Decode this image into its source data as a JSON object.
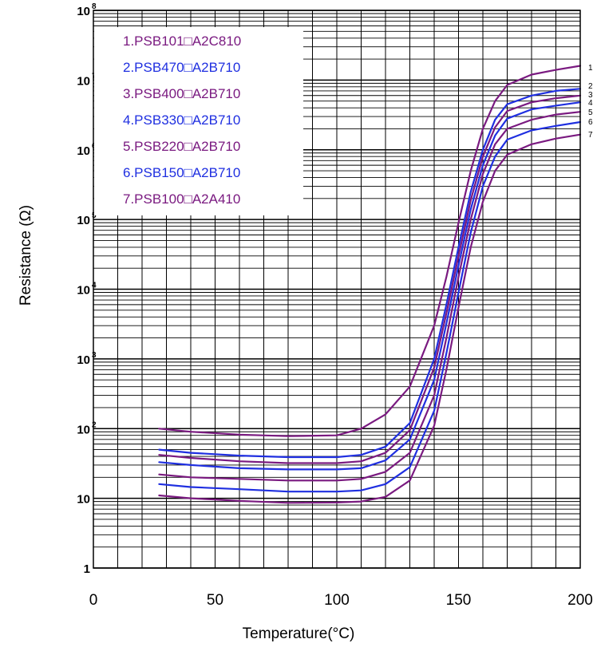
{
  "chart_data": {
    "type": "line",
    "title": "",
    "xlabel": "Temperature(°C)",
    "ylabel": "Resistance (Ω)",
    "x_scale": "linear",
    "y_scale": "log",
    "xlim": [
      0,
      200
    ],
    "ylim": [
      1,
      100000000
    ],
    "grid": true,
    "legend_position": "top-left",
    "x_ticks": [
      "0",
      "50",
      "100",
      "150",
      "200"
    ],
    "y_ticks": [
      {
        "base": "1",
        "exp": ""
      },
      {
        "base": "10",
        "exp": ""
      },
      {
        "base": "10",
        "exp": "2"
      },
      {
        "base": "10",
        "exp": "3"
      },
      {
        "base": "10",
        "exp": "4"
      },
      {
        "base": "10",
        "exp": "5"
      },
      {
        "base": "10",
        "exp": "6"
      },
      {
        "base": "10",
        "exp": "7"
      },
      {
        "base": "10",
        "exp": "8"
      }
    ],
    "series": [
      {
        "name": "1.PSB101□A2C810",
        "end_label": "1",
        "color": "#7a1a80",
        "points": [
          [
            27,
            100
          ],
          [
            40,
            90
          ],
          [
            60,
            82
          ],
          [
            80,
            78
          ],
          [
            100,
            80
          ],
          [
            110,
            100
          ],
          [
            120,
            160
          ],
          [
            130,
            400
          ],
          [
            140,
            3000
          ],
          [
            145,
            15000
          ],
          [
            150,
            90000
          ],
          [
            155,
            500000
          ],
          [
            160,
            2000000
          ],
          [
            165,
            5000000
          ],
          [
            170,
            8500000
          ],
          [
            180,
            12000000
          ],
          [
            190,
            14000000
          ],
          [
            200,
            16000000
          ]
        ]
      },
      {
        "name": "2.PSB470□A2B710",
        "end_label": "2",
        "color": "#1f2fe0",
        "points": [
          [
            27,
            50
          ],
          [
            40,
            45
          ],
          [
            60,
            41
          ],
          [
            80,
            39
          ],
          [
            100,
            39
          ],
          [
            110,
            42
          ],
          [
            120,
            55
          ],
          [
            130,
            120
          ],
          [
            140,
            1000
          ],
          [
            145,
            6000
          ],
          [
            150,
            40000
          ],
          [
            155,
            250000
          ],
          [
            160,
            1000000
          ],
          [
            165,
            2700000
          ],
          [
            170,
            4500000
          ],
          [
            180,
            6000000
          ],
          [
            190,
            7000000
          ],
          [
            200,
            7500000
          ]
        ]
      },
      {
        "name": "3.PSB400□A2B710",
        "end_label": "3",
        "color": "#7a1a80",
        "points": [
          [
            27,
            42
          ],
          [
            40,
            38
          ],
          [
            60,
            34
          ],
          [
            80,
            32
          ],
          [
            100,
            32
          ],
          [
            110,
            34
          ],
          [
            120,
            45
          ],
          [
            130,
            95
          ],
          [
            140,
            750
          ],
          [
            145,
            4500
          ],
          [
            150,
            30000
          ],
          [
            155,
            190000
          ],
          [
            160,
            800000
          ],
          [
            165,
            2100000
          ],
          [
            170,
            3600000
          ],
          [
            180,
            4800000
          ],
          [
            190,
            5500000
          ],
          [
            200,
            6000000
          ]
        ]
      },
      {
        "name": "4.PSB330□A2B710",
        "end_label": "4",
        "color": "#1f2fe0",
        "points": [
          [
            27,
            33
          ],
          [
            40,
            30
          ],
          [
            60,
            27
          ],
          [
            80,
            26
          ],
          [
            100,
            26
          ],
          [
            110,
            27
          ],
          [
            120,
            35
          ],
          [
            130,
            70
          ],
          [
            140,
            500
          ],
          [
            145,
            3200
          ],
          [
            150,
            22000
          ],
          [
            155,
            140000
          ],
          [
            160,
            600000
          ],
          [
            165,
            1600000
          ],
          [
            170,
            2800000
          ],
          [
            180,
            3800000
          ],
          [
            190,
            4300000
          ],
          [
            200,
            4800000
          ]
        ]
      },
      {
        "name": "5.PSB220□A2B710",
        "end_label": "5",
        "color": "#7a1a80",
        "points": [
          [
            27,
            22
          ],
          [
            40,
            20
          ],
          [
            60,
            19
          ],
          [
            80,
            18
          ],
          [
            100,
            18
          ],
          [
            110,
            19
          ],
          [
            120,
            24
          ],
          [
            130,
            45
          ],
          [
            140,
            300
          ],
          [
            145,
            2000
          ],
          [
            150,
            15000
          ],
          [
            155,
            100000
          ],
          [
            160,
            450000
          ],
          [
            165,
            1200000
          ],
          [
            170,
            2000000
          ],
          [
            180,
            2700000
          ],
          [
            190,
            3200000
          ],
          [
            200,
            3500000
          ]
        ]
      },
      {
        "name": "6.PSB150□A2B710",
        "end_label": "6",
        "color": "#1f2fe0",
        "points": [
          [
            27,
            16
          ],
          [
            40,
            14.5
          ],
          [
            60,
            13.5
          ],
          [
            80,
            12.5
          ],
          [
            100,
            12.5
          ],
          [
            110,
            13
          ],
          [
            120,
            16
          ],
          [
            130,
            28
          ],
          [
            140,
            180
          ],
          [
            145,
            1200
          ],
          [
            150,
            9000
          ],
          [
            155,
            65000
          ],
          [
            160,
            300000
          ],
          [
            165,
            800000
          ],
          [
            170,
            1400000
          ],
          [
            180,
            1900000
          ],
          [
            190,
            2200000
          ],
          [
            200,
            2500000
          ]
        ]
      },
      {
        "name": "7.PSB100□A2A410",
        "end_label": "7",
        "color": "#7a1a80",
        "points": [
          [
            27,
            11
          ],
          [
            40,
            10
          ],
          [
            60,
            9.2
          ],
          [
            80,
            8.6
          ],
          [
            100,
            8.7
          ],
          [
            110,
            9
          ],
          [
            120,
            10.5
          ],
          [
            130,
            18
          ],
          [
            140,
            110
          ],
          [
            145,
            700
          ],
          [
            150,
            5500
          ],
          [
            155,
            40000
          ],
          [
            160,
            180000
          ],
          [
            165,
            500000
          ],
          [
            170,
            850000
          ],
          [
            180,
            1200000
          ],
          [
            190,
            1450000
          ],
          [
            200,
            1650000
          ]
        ]
      }
    ]
  }
}
